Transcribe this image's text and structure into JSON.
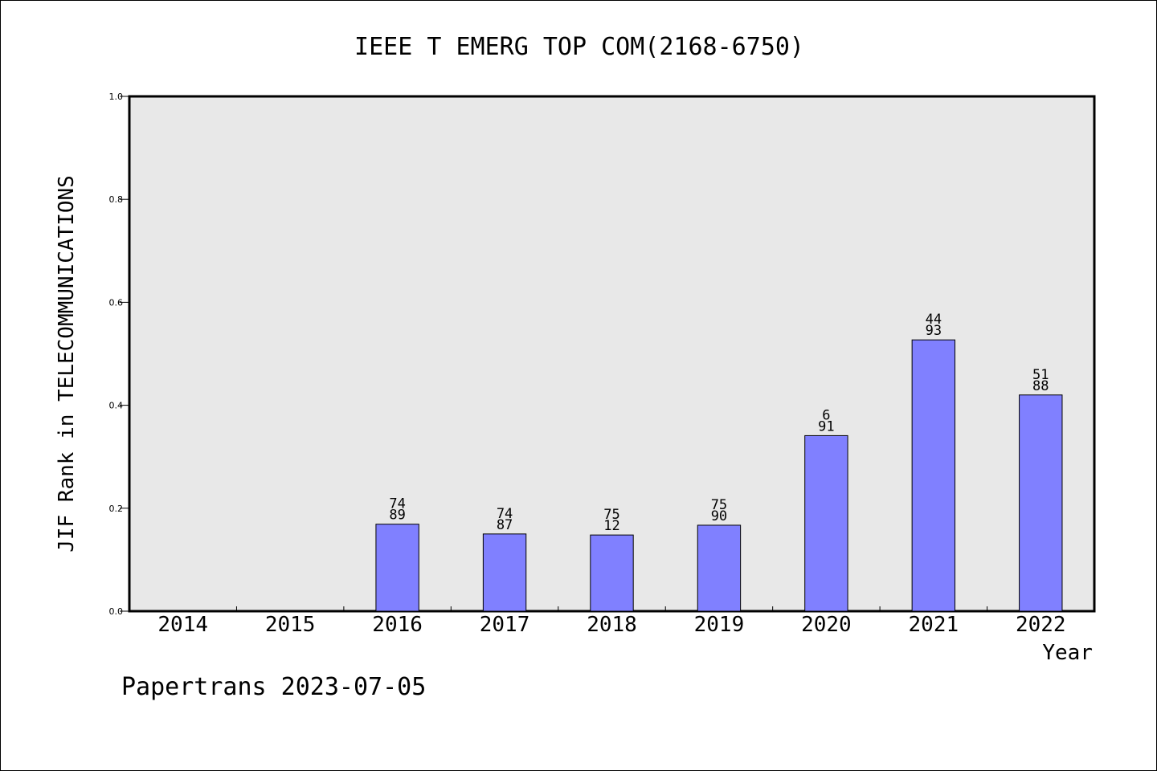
{
  "chart_data": {
    "type": "bar",
    "title": "IEEE T EMERG TOP COM(2168-6750)",
    "xlabel": "Year",
    "ylabel": "JIF Rank in TELECOMMUNICATIONS",
    "footer": "Papertrans 2023-07-05",
    "ylim": [
      0,
      1.0
    ],
    "yticks": [
      "0.0",
      "0.2",
      "0.4",
      "0.6",
      "0.8",
      "1.0"
    ],
    "categories": [
      "2014",
      "2015",
      "2016",
      "2017",
      "2018",
      "2019",
      "2020",
      "2021",
      "2022"
    ],
    "values": [
      null,
      null,
      0.169,
      0.15,
      0.148,
      0.167,
      0.341,
      0.527,
      0.42
    ],
    "labels_top": [
      "",
      "",
      "74",
      "74",
      "75",
      "75",
      "6",
      "44",
      "51"
    ],
    "labels_bottom": [
      "",
      "",
      "89",
      "87",
      "12",
      "90",
      "91",
      "93",
      "88"
    ],
    "grid": false,
    "legend": "none",
    "colors": {
      "bar": "#8080ff",
      "plot_bg": "#e8e8e8",
      "axis": "#000000"
    }
  }
}
